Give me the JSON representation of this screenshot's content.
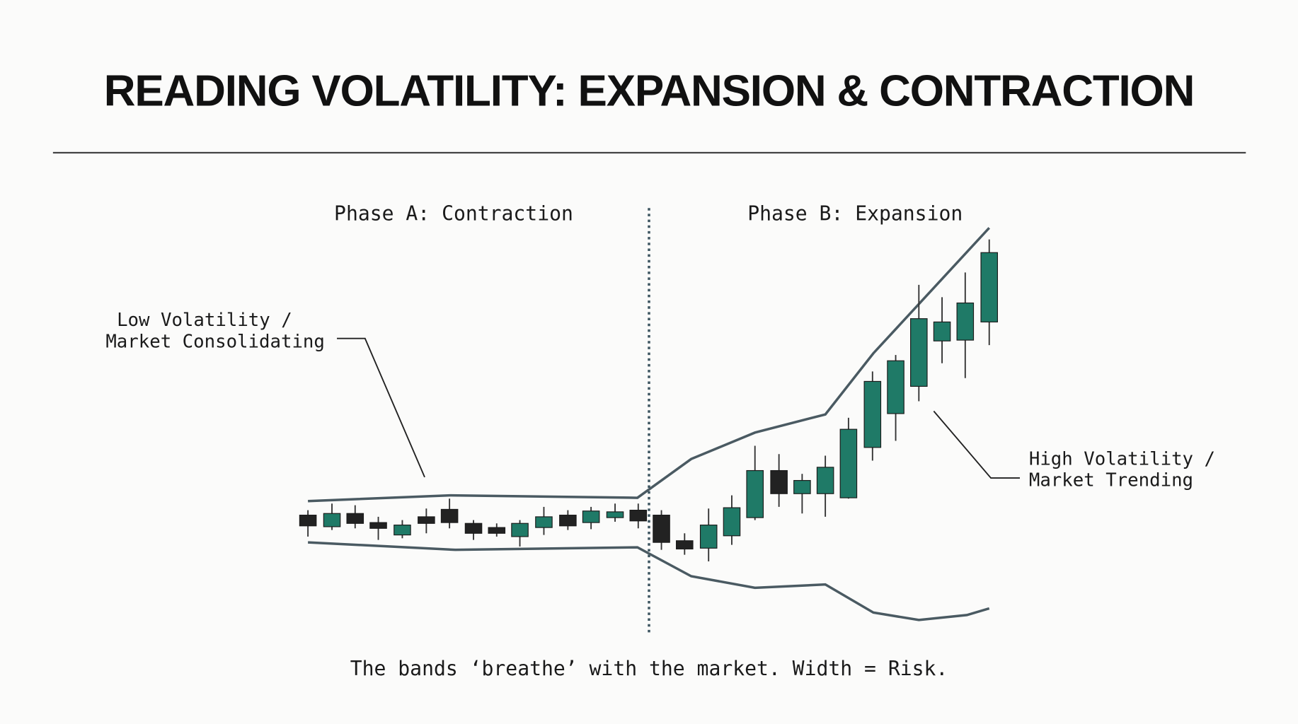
{
  "title": "READING VOLATILITY: EXPANSION & CONTRACTION",
  "phases": [
    "Phase A: Contraction",
    "Phase B: Expansion"
  ],
  "annotations": [
    {
      "lines": [
        "Low Volatility /",
        "Market Consolidating"
      ]
    },
    {
      "lines": [
        "High Volatility /",
        "Market Trending"
      ]
    }
  ],
  "caption": "The bands ‘breathe’ with the market. Width = Risk."
}
